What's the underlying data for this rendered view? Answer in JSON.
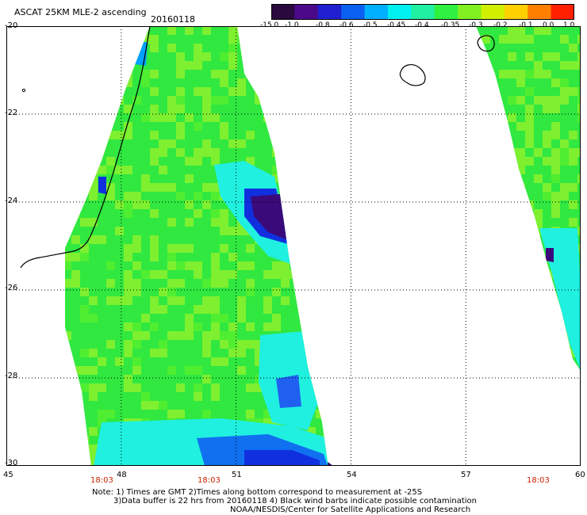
{
  "header": {
    "title": "ASCAT 25KM MLE-2 ascending",
    "date": "20160118"
  },
  "colorbar": {
    "ticks": [
      "-15.0",
      "-1.0",
      "-0.8",
      "-0.6",
      "-0.5",
      "-0.45",
      "-0.4",
      "-0.35",
      "-0.3",
      "-0.2",
      "-0.1",
      "0.0",
      "1.0"
    ],
    "colors": [
      "#2a0a3e",
      "#4a0a8a",
      "#2020d0",
      "#0a60f0",
      "#00b0ff",
      "#00f0f0",
      "#20f0a0",
      "#30f040",
      "#80f020",
      "#d0f000",
      "#ffd000",
      "#ff8000",
      "#ff2000"
    ]
  },
  "map": {
    "lon_range": [
      45,
      60
    ],
    "lat_range": [
      -30,
      -20
    ],
    "y_ticks": [
      "-20",
      "-22",
      "-24",
      "-26",
      "-28",
      "-30"
    ],
    "x_ticks": [
      "45",
      "48",
      "51",
      "54",
      "57",
      "60"
    ],
    "time_labels": [
      "18:03",
      "18:03",
      "18:03"
    ],
    "colors": {
      "green": "#30e840",
      "lightgreen": "#7ef030",
      "cyan": "#20f0e0",
      "blue": "#1030e0",
      "purple": "#3a0a7a",
      "coast": "#000000"
    }
  },
  "notes": {
    "line1": "Note: 1) Times are GMT 2)Times along bottom correspond to measurement at -25S",
    "line2": "3)Data buffer is 22 hrs from 20160118 4) Black wind barbs indicate possible contamination",
    "line3": "NOAA/NESDIS/Center for Satellite Applications and Research"
  }
}
